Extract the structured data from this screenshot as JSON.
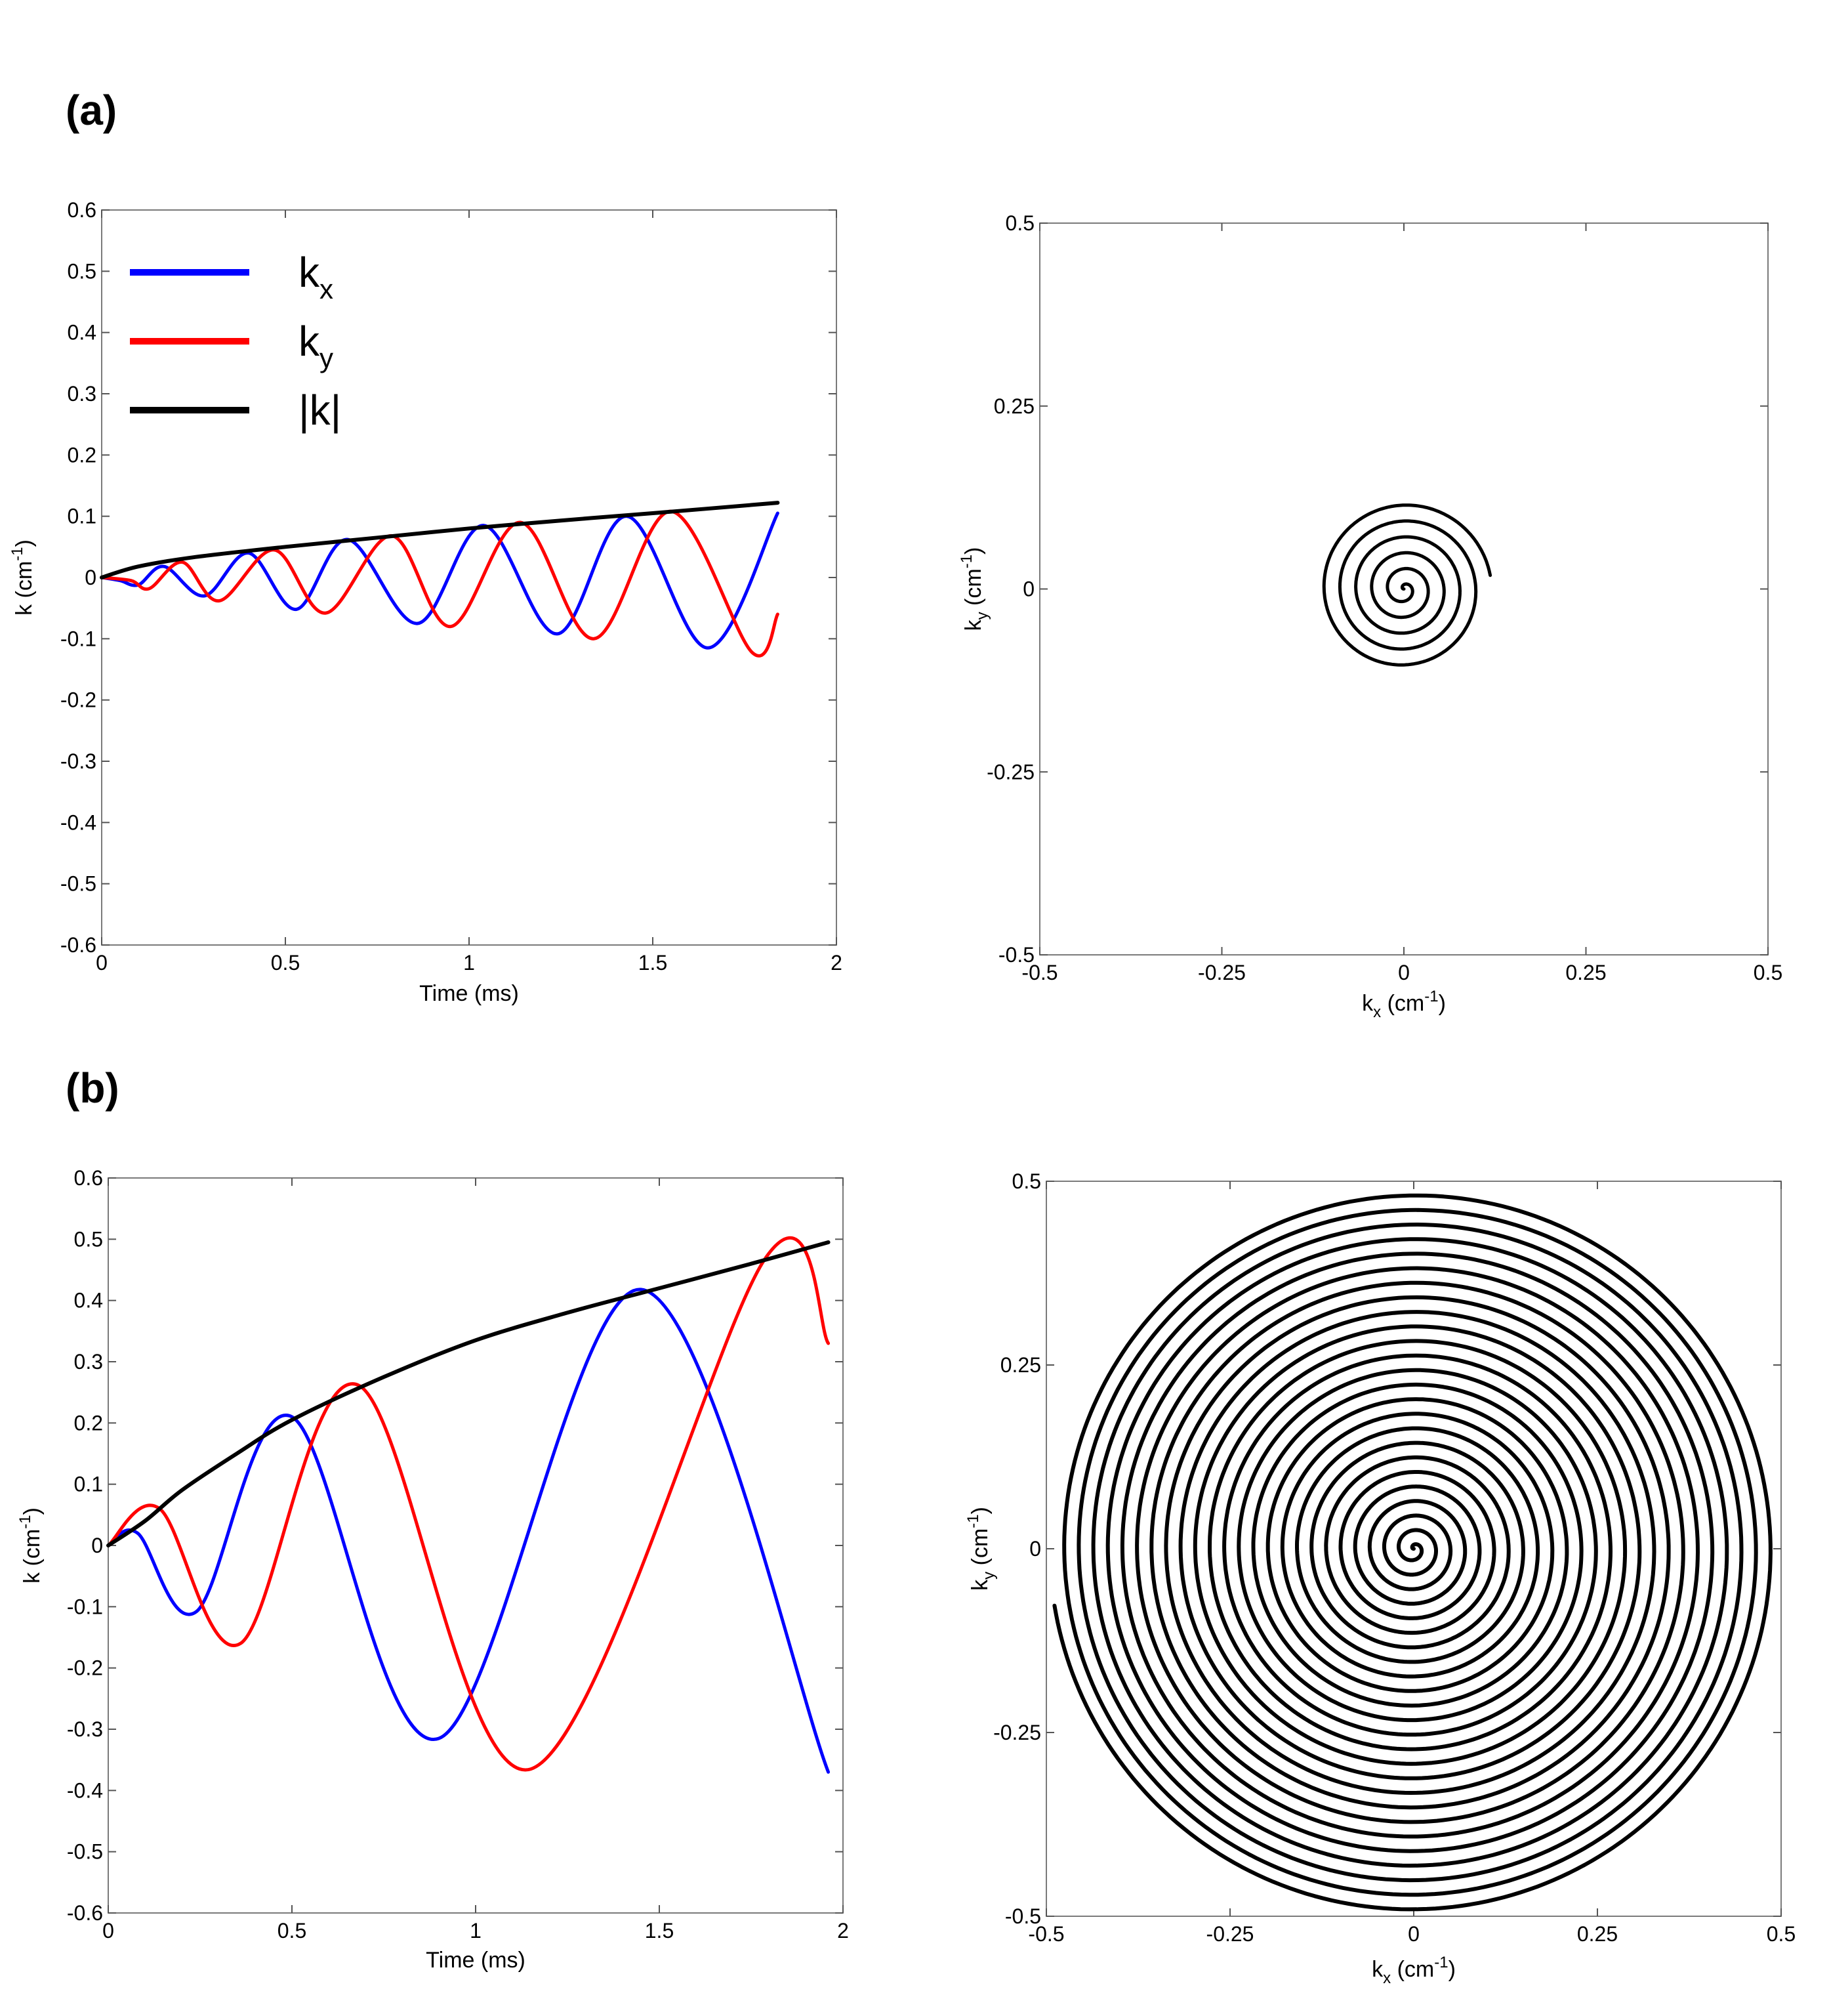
{
  "panels": [
    {
      "label": "(a)"
    },
    {
      "label": "(b)"
    }
  ],
  "legend": {
    "kx": {
      "main": "k",
      "sub": "x"
    },
    "ky": {
      "main": "k",
      "sub": "y"
    },
    "kmag": {
      "text": "|k|"
    }
  },
  "colors": {
    "kx": "#0000ff",
    "ky": "#ff0000",
    "kmag": "#000000",
    "trajectory": "#000000"
  },
  "chart_data": [
    {
      "panel": "a",
      "type": "line",
      "xlabel": "Time (ms)",
      "ylabel": "k (cm-1)",
      "xlim": [
        0,
        2
      ],
      "ylim": [
        -0.6,
        0.6
      ],
      "xticks": [
        "0",
        "0.5",
        "1",
        "1.5",
        "2"
      ],
      "yticks": [
        "-0.6",
        "-0.5",
        "-0.4",
        "-0.3",
        "-0.2",
        "-0.1",
        "0",
        "0.1",
        "0.2",
        "0.3",
        "0.4",
        "0.5",
        "0.6"
      ],
      "legend_position": "top-left",
      "series": [
        {
          "name": "kx",
          "x": [
            0.0,
            0.05,
            0.1,
            0.17,
            0.28,
            0.4,
            0.53,
            0.67,
            0.86,
            1.04,
            1.24,
            1.43,
            1.65,
            1.84
          ],
          "y": [
            0.0,
            -0.005,
            -0.012,
            0.018,
            -0.03,
            0.04,
            -0.052,
            0.062,
            -0.075,
            0.085,
            -0.092,
            0.1,
            -0.115,
            0.105
          ]
        },
        {
          "name": "ky",
          "x": [
            0.0,
            0.08,
            0.13,
            0.22,
            0.32,
            0.47,
            0.61,
            0.79,
            0.95,
            1.14,
            1.34,
            1.55,
            1.77,
            1.84
          ],
          "y": [
            0.0,
            -0.005,
            -0.018,
            0.025,
            -0.038,
            0.045,
            -0.058,
            0.068,
            -0.08,
            0.09,
            -0.1,
            0.108,
            -0.122,
            -0.06
          ]
        },
        {
          "name": "|k|",
          "x": [
            0.0,
            0.1,
            0.25,
            0.5,
            0.75,
            1.0,
            1.25,
            1.5,
            1.84
          ],
          "y": [
            0.0,
            0.018,
            0.033,
            0.05,
            0.065,
            0.08,
            0.093,
            0.105,
            0.122
          ]
        }
      ]
    },
    {
      "panel": "a",
      "type": "line",
      "xlabel": "kx (cm-1)",
      "ylabel": "ky (cm-1)",
      "xlim": [
        -0.5,
        0.5
      ],
      "ylim": [
        -0.5,
        0.5
      ],
      "xticks": [
        "-0.5",
        "-0.25",
        "0",
        "0.25",
        "0.5"
      ],
      "yticks": [
        "-0.5",
        "-0.25",
        "0",
        "0.25",
        "0.5"
      ],
      "series": [
        {
          "name": "trajectory",
          "shape": "spiral",
          "turns": 5.5,
          "max_radius": 0.12
        }
      ]
    },
    {
      "panel": "b",
      "type": "line",
      "xlabel": "Time (ms)",
      "ylabel": "k (cm-1)",
      "xlim": [
        0,
        2
      ],
      "ylim": [
        -0.6,
        0.6
      ],
      "xticks": [
        "0",
        "0.5",
        "1",
        "1.5",
        "2"
      ],
      "yticks": [
        "-0.6",
        "-0.5",
        "-0.4",
        "-0.3",
        "-0.2",
        "-0.1",
        "0",
        "0.1",
        "0.2",
        "0.3",
        "0.4",
        "0.5",
        "0.6"
      ],
      "series": [
        {
          "name": "kx",
          "x": [
            0.0,
            0.08,
            0.24,
            0.5,
            0.9,
            1.45,
            1.96
          ],
          "y": [
            0.0,
            0.02,
            -0.108,
            0.21,
            -0.315,
            0.418,
            -0.37
          ]
        },
        {
          "name": "ky",
          "x": [
            0.0,
            0.14,
            0.36,
            0.68,
            1.15,
            1.79,
            1.96
          ],
          "y": [
            0.0,
            0.06,
            -0.16,
            0.262,
            -0.365,
            0.47,
            0.33
          ]
        },
        {
          "name": "|k|",
          "x": [
            0.0,
            0.1,
            0.2,
            0.35,
            0.5,
            0.75,
            1.0,
            1.25,
            1.5,
            1.75,
            1.96
          ],
          "y": [
            0.0,
            0.04,
            0.09,
            0.15,
            0.205,
            0.275,
            0.335,
            0.38,
            0.42,
            0.46,
            0.495
          ]
        }
      ]
    },
    {
      "panel": "b",
      "type": "line",
      "xlabel": "kx (cm-1)",
      "ylabel": "ky (cm-1)",
      "xlim": [
        -0.5,
        0.5
      ],
      "ylim": [
        -0.5,
        0.5
      ],
      "xticks": [
        "-0.5",
        "-0.25",
        "0",
        "0.25",
        "0.5"
      ],
      "yticks": [
        "-0.5",
        "-0.25",
        "0",
        "0.25",
        "0.5"
      ],
      "series": [
        {
          "name": "trajectory",
          "shape": "spiral",
          "turns": 25,
          "max_radius": 0.495
        }
      ]
    }
  ]
}
